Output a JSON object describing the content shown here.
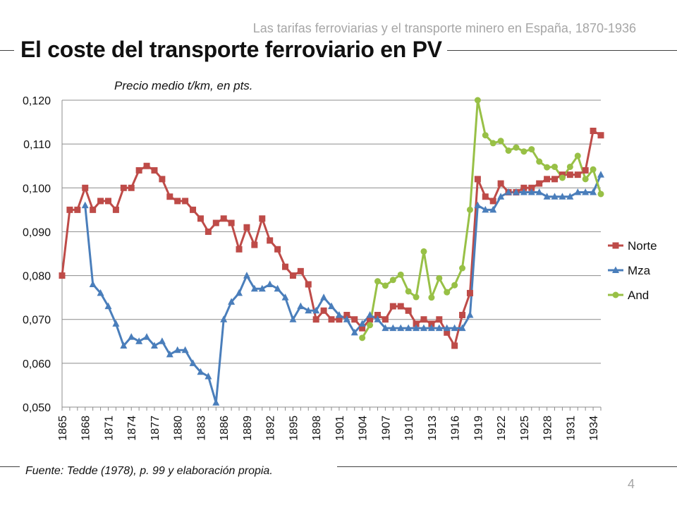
{
  "slide": {
    "header": "Las tarifas ferroviarias y el transporte minero en España, 1870-1936",
    "title": "El coste del transporte ferroviario en PV",
    "subtitle": "Precio medio t/km, en pts.",
    "source": "Fuente: Tedde (1978), p. 99 y elaboración propia.",
    "page_number": "4"
  },
  "chart_data": {
    "type": "line",
    "title": "Precio medio t/km, en pts.",
    "xlabel": "",
    "ylabel": "",
    "x_start": 1865,
    "x_end": 1935,
    "ylim": [
      0.05,
      0.12
    ],
    "y_ticks": [
      0.05,
      0.06,
      0.07,
      0.08,
      0.09,
      0.1,
      0.11,
      0.12
    ],
    "y_tick_labels": [
      "0,050",
      "0,060",
      "0,070",
      "0,080",
      "0,090",
      "0,100",
      "0,110",
      "0,120"
    ],
    "x_tick_labels": [
      "1865",
      "1868",
      "1871",
      "1874",
      "1877",
      "1880",
      "1883",
      "1886",
      "1889",
      "1892",
      "1895",
      "1898",
      "1901",
      "1904",
      "1907",
      "1910",
      "1913",
      "1916",
      "1919",
      "1922",
      "1925",
      "1928",
      "1931",
      "1934"
    ],
    "legend_position": "right",
    "series": [
      {
        "name": "Norte",
        "color": "#be4b48",
        "marker": "square",
        "start_year": 1865,
        "values": [
          0.08,
          0.095,
          0.095,
          0.1,
          0.095,
          0.097,
          0.097,
          0.095,
          0.1,
          0.1,
          0.104,
          0.105,
          0.104,
          0.102,
          0.098,
          0.097,
          0.097,
          0.095,
          0.093,
          0.09,
          0.092,
          0.093,
          0.092,
          0.086,
          0.091,
          0.087,
          0.093,
          0.088,
          0.086,
          0.082,
          0.08,
          0.081,
          0.078,
          0.07,
          0.072,
          0.07,
          0.07,
          0.071,
          0.07,
          0.068,
          0.07,
          0.071,
          0.07,
          0.073,
          0.073,
          0.072,
          0.069,
          0.07,
          0.069,
          0.07,
          0.067,
          0.064,
          0.071,
          0.076,
          0.102,
          0.098,
          0.097,
          0.101,
          0.099,
          0.099,
          0.1,
          0.1,
          0.101,
          0.102,
          0.102,
          0.103,
          0.103,
          0.103,
          0.104,
          0.113,
          0.112
        ]
      },
      {
        "name": "Mza",
        "color": "#4a7ebb",
        "marker": "triangle",
        "start_year": 1868,
        "values": [
          0.096,
          0.078,
          0.076,
          0.073,
          0.069,
          0.064,
          0.066,
          0.065,
          0.066,
          0.064,
          0.065,
          0.062,
          0.063,
          0.063,
          0.06,
          0.058,
          0.057,
          0.051,
          0.07,
          0.074,
          0.076,
          0.08,
          0.077,
          0.077,
          0.078,
          0.077,
          0.075,
          0.07,
          0.073,
          0.072,
          0.072,
          0.075,
          0.073,
          0.071,
          0.07,
          0.067,
          0.069,
          0.071,
          0.07,
          0.068,
          0.068,
          0.068,
          0.068,
          0.068,
          0.068,
          0.068,
          0.068,
          0.068,
          0.068,
          0.068,
          0.071,
          0.096,
          0.095,
          0.095,
          0.098,
          0.099,
          0.099,
          0.099,
          0.099,
          0.099,
          0.098,
          0.098,
          0.098,
          0.098,
          0.099,
          0.099,
          0.099,
          0.103
        ]
      },
      {
        "name": "And",
        "color": "#98c046",
        "marker": "circle",
        "start_year": 1904,
        "values": [
          0.0658,
          0.0687,
          0.0787,
          0.0777,
          0.079,
          0.0802,
          0.0764,
          0.0751,
          0.0855,
          0.075,
          0.0794,
          0.0762,
          0.0778,
          0.0817,
          0.095,
          0.12,
          0.112,
          0.1102,
          0.1107,
          0.1085,
          0.1092,
          0.1083,
          0.1088,
          0.106,
          0.1047,
          0.1048,
          0.1023,
          0.1048,
          0.1073,
          0.102,
          0.1042,
          0.0986
        ]
      }
    ]
  }
}
